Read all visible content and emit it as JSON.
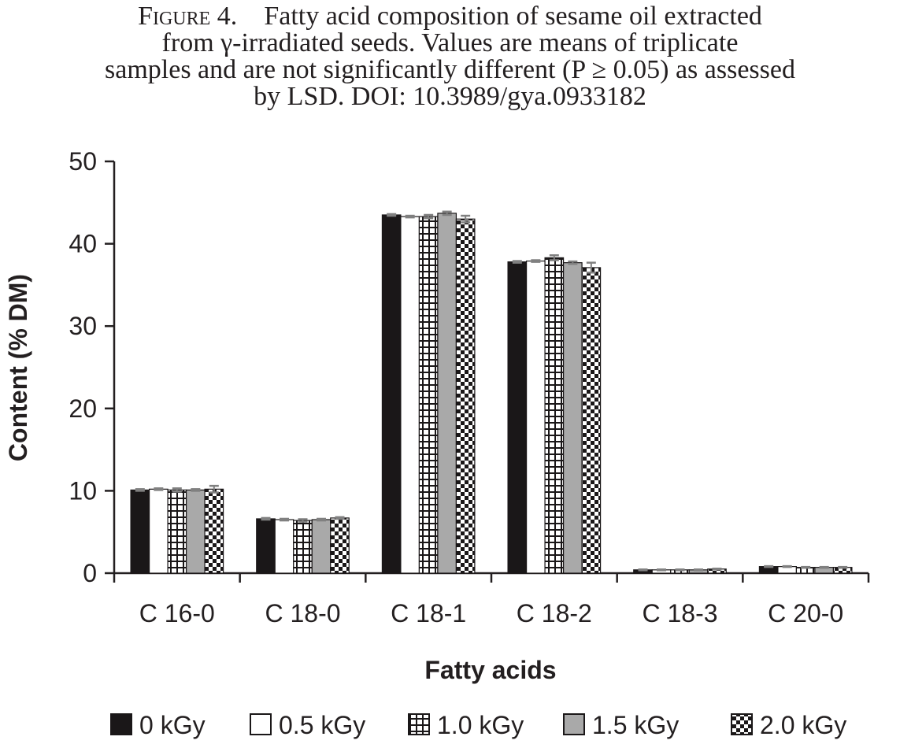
{
  "caption": {
    "label": "Figure 4.",
    "lines": [
      "Fatty acid composition of sesame oil extracted",
      "from γ-irradiated seeds. Values are means of triplicate",
      "samples and are not significantly different (P ≥ 0.05) as assessed",
      "by LSD. DOI: 10.3989/gya.0933182"
    ]
  },
  "chart_data": {
    "type": "bar",
    "xlabel": "Fatty acids",
    "ylabel": "Content (% DM)",
    "ylim": [
      0,
      50
    ],
    "yticks": [
      0,
      10,
      20,
      30,
      40,
      50
    ],
    "grid": false,
    "legend_position": "bottom",
    "categories": [
      "C 16-0",
      "C 18-0",
      "C 18-1",
      "C 18-2",
      "C 18-3",
      "C 20-0"
    ],
    "series": [
      {
        "name": "0 kGy",
        "fill": "solid-black",
        "values": [
          10.1,
          6.6,
          43.5,
          37.8,
          0.4,
          0.8
        ],
        "errors": [
          0.1,
          0.1,
          0.1,
          0.1,
          0.05,
          0.05
        ]
      },
      {
        "name": "0.5 kGy",
        "fill": "white",
        "values": [
          10.2,
          6.5,
          43.3,
          37.9,
          0.4,
          0.8
        ],
        "errors": [
          0.1,
          0.1,
          0.1,
          0.1,
          0.05,
          0.05
        ]
      },
      {
        "name": "1.0 kGy",
        "fill": "grid",
        "values": [
          10.1,
          6.4,
          43.3,
          38.3,
          0.4,
          0.7
        ],
        "errors": [
          0.2,
          0.15,
          0.2,
          0.3,
          0.05,
          0.05
        ]
      },
      {
        "name": "1.5 kGy",
        "fill": "gray",
        "values": [
          10.1,
          6.5,
          43.7,
          37.7,
          0.4,
          0.7
        ],
        "errors": [
          0.1,
          0.1,
          0.2,
          0.15,
          0.05,
          0.05
        ]
      },
      {
        "name": "2.0 kGy",
        "fill": "checker",
        "values": [
          10.2,
          6.7,
          43.0,
          37.1,
          0.5,
          0.7
        ],
        "errors": [
          0.4,
          0.1,
          0.4,
          0.6,
          0.05,
          0.05
        ]
      }
    ],
    "colors": {
      "black": "#1a1718",
      "white": "#ffffff",
      "gray": "#a9a9a9",
      "error_bar": "#808080",
      "axis": "#231f20"
    }
  }
}
